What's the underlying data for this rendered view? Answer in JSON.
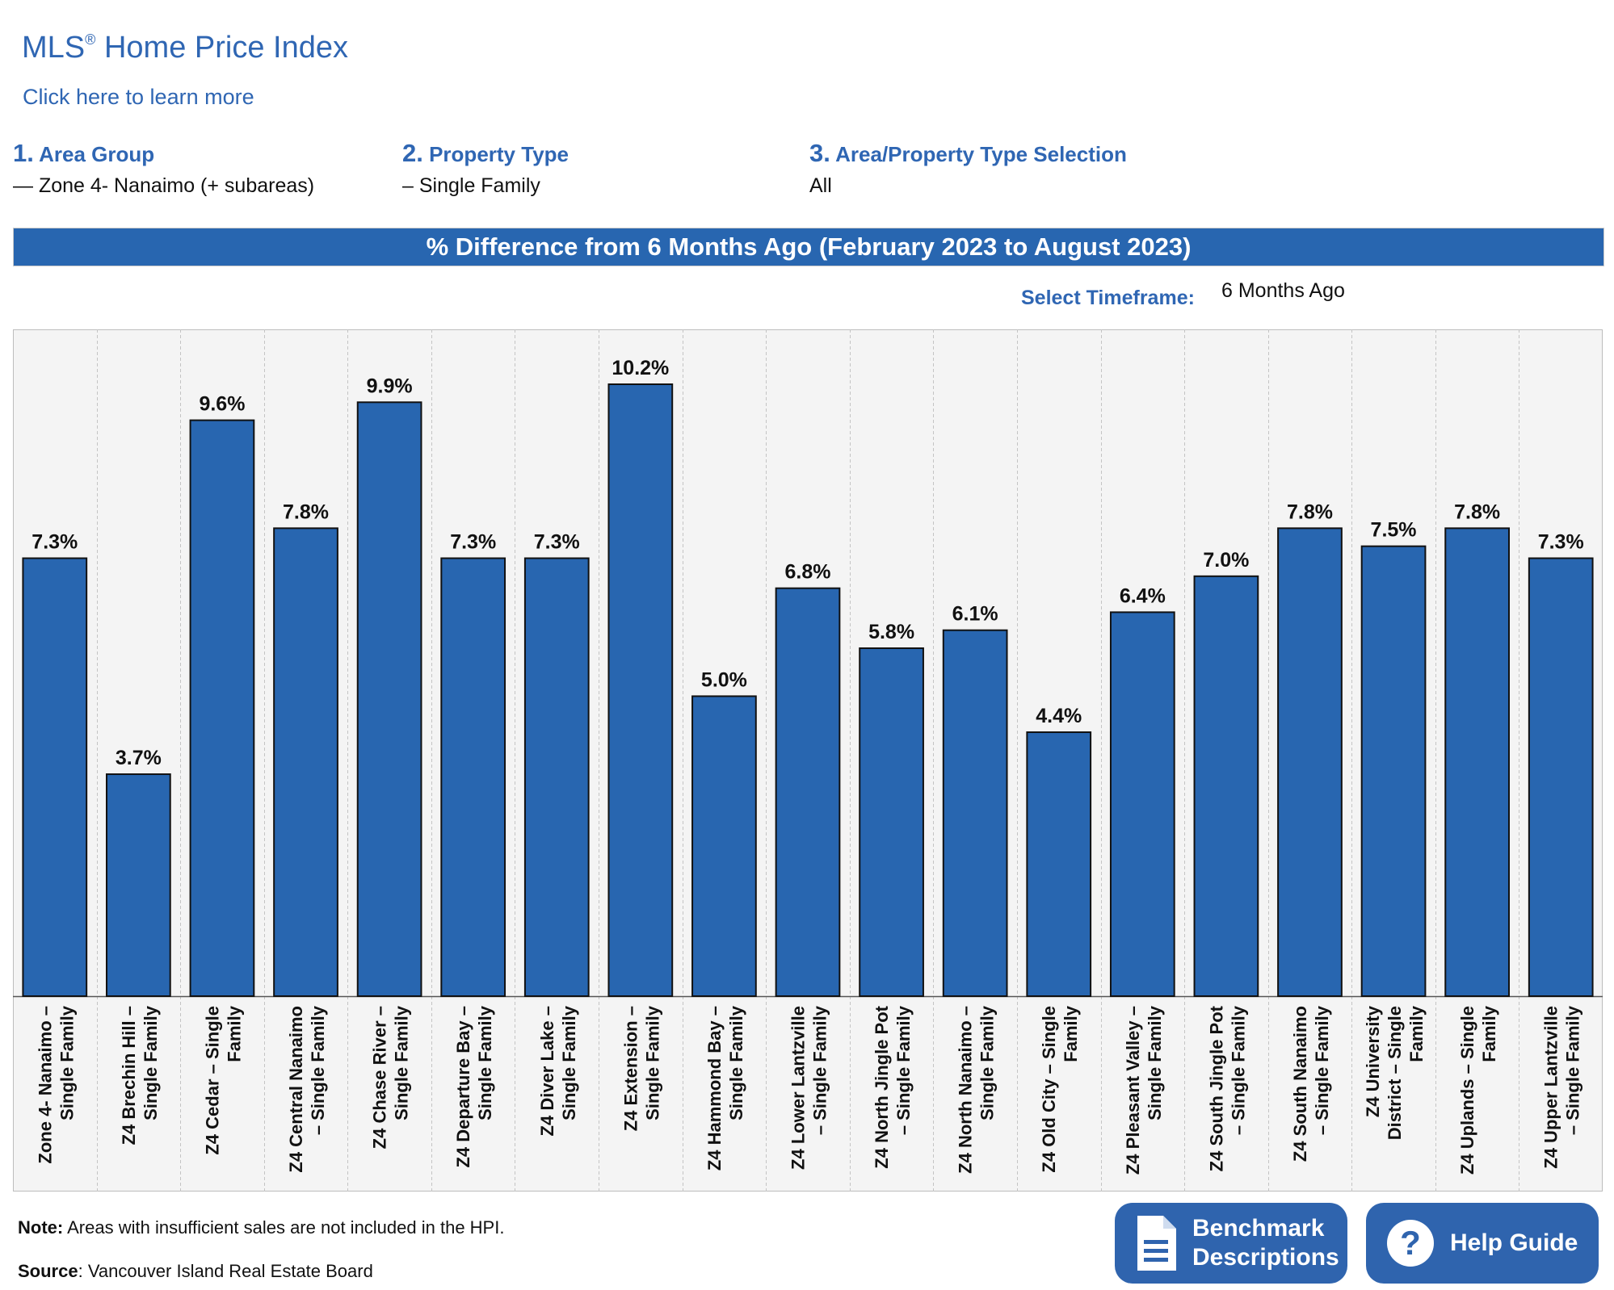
{
  "header": {
    "title": "MLS",
    "title_mark": "®",
    "title_rest": "Home Price Index",
    "learn_link": "Click here to learn more"
  },
  "steps": [
    {
      "num": "1.",
      "label": "Area Group",
      "value": "— Zone 4- Nanaimo (+ subareas)"
    },
    {
      "num": "2.",
      "label": "Property Type",
      "value": "– Single Family"
    },
    {
      "num": "3.",
      "label": "Area/Property Type Selection",
      "value": "All"
    }
  ],
  "banner": "% Difference from 6 Months Ago (February 2023 to August 2023)",
  "timeframe": {
    "label": "Select Timeframe:",
    "value": "6 Months Ago"
  },
  "footer": {
    "note_label": "Note:",
    "note_text": "Areas with insufficient sales are not included in the HPI.",
    "source_label": "Source",
    "source_text": ": Vancouver Island Real Estate Board"
  },
  "buttons": {
    "benchmark": {
      "line1": "Benchmark",
      "line2": "Descriptions",
      "icon": "document-icon"
    },
    "help": {
      "label": "Help Guide",
      "icon": "question-icon"
    }
  },
  "colors": {
    "bar": "#2866b0",
    "accent": "#2f66b3",
    "plot_bg": "#f4f4f4"
  },
  "chart_data": {
    "type": "bar",
    "title": "% Difference from 6 Months Ago (February 2023 to August 2023)",
    "ylim": [
      0,
      10.2
    ],
    "grid": "vertical dashed separators",
    "categories": [
      [
        "Zone 4- Nanaimo –",
        "Single Family"
      ],
      [
        "Z4 Brechin Hill –",
        "Single Family"
      ],
      [
        "Z4 Cedar – Single",
        "Family"
      ],
      [
        "Z4 Central Nanaimo",
        "– Single Family"
      ],
      [
        "Z4 Chase River –",
        "Single Family"
      ],
      [
        "Z4 Departure Bay –",
        "Single Family"
      ],
      [
        "Z4 Diver Lake –",
        "Single Family"
      ],
      [
        "Z4 Extension –",
        "Single Family"
      ],
      [
        "Z4 Hammond Bay –",
        "Single Family"
      ],
      [
        "Z4 Lower Lantzville",
        "– Single Family"
      ],
      [
        "Z4 North Jingle Pot",
        "– Single Family"
      ],
      [
        "Z4 North Nanaimo –",
        "Single Family"
      ],
      [
        "Z4 Old City – Single",
        "Family"
      ],
      [
        "Z4 Pleasant Valley –",
        "Single Family"
      ],
      [
        "Z4 South Jingle Pot",
        "– Single Family"
      ],
      [
        "Z4 South Nanaimo",
        "– Single Family"
      ],
      [
        "Z4 University",
        "District – Single",
        "Family"
      ],
      [
        "Z4 Uplands – Single",
        "Family"
      ],
      [
        "Z4 Upper Lantzville",
        "– Single Family"
      ]
    ],
    "values": [
      7.3,
      3.7,
      9.6,
      7.8,
      9.9,
      7.3,
      7.3,
      10.2,
      5.0,
      6.8,
      5.8,
      6.1,
      4.4,
      6.4,
      7.0,
      7.8,
      7.5,
      7.8,
      7.3
    ],
    "labels": [
      "7.3%",
      "3.7%",
      "9.6%",
      "7.8%",
      "9.9%",
      "7.3%",
      "7.3%",
      "10.2%",
      "5.0%",
      "6.8%",
      "5.8%",
      "6.1%",
      "4.4%",
      "6.4%",
      "7.0%",
      "7.8%",
      "7.5%",
      "7.8%",
      "7.3%"
    ]
  }
}
